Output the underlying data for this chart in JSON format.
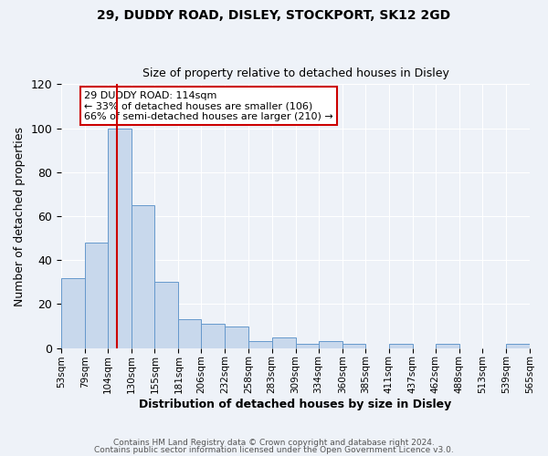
{
  "title1": "29, DUDDY ROAD, DISLEY, STOCKPORT, SK12 2GD",
  "title2": "Size of property relative to detached houses in Disley",
  "xlabel": "Distribution of detached houses by size in Disley",
  "ylabel": "Number of detached properties",
  "bin_labels": [
    "53sqm",
    "79sqm",
    "104sqm",
    "130sqm",
    "155sqm",
    "181sqm",
    "206sqm",
    "232sqm",
    "258sqm",
    "283sqm",
    "309sqm",
    "334sqm",
    "360sqm",
    "385sqm",
    "411sqm",
    "437sqm",
    "462sqm",
    "488sqm",
    "513sqm",
    "539sqm",
    "565sqm"
  ],
  "bar_values": [
    32,
    48,
    100,
    65,
    30,
    13,
    11,
    10,
    3,
    5,
    2,
    3,
    2,
    0,
    2,
    0,
    2,
    0,
    0,
    2
  ],
  "bin_edges": [
    53,
    79,
    104,
    130,
    155,
    181,
    206,
    232,
    258,
    283,
    309,
    334,
    360,
    385,
    411,
    437,
    462,
    488,
    513,
    539,
    565
  ],
  "property_size": 114,
  "property_label": "29 DUDDY ROAD: 114sqm",
  "annotation_line1": "← 33% of detached houses are smaller (106)",
  "annotation_line2": "66% of semi-detached houses are larger (210) →",
  "bar_color": "#c8d8ec",
  "bar_edge_color": "#6699cc",
  "redline_color": "#cc0000",
  "annotation_box_color": "#cc0000",
  "background_color": "#eef2f8",
  "ylim": [
    0,
    120
  ],
  "footer1": "Contains HM Land Registry data © Crown copyright and database right 2024.",
  "footer2": "Contains public sector information licensed under the Open Government Licence v3.0."
}
